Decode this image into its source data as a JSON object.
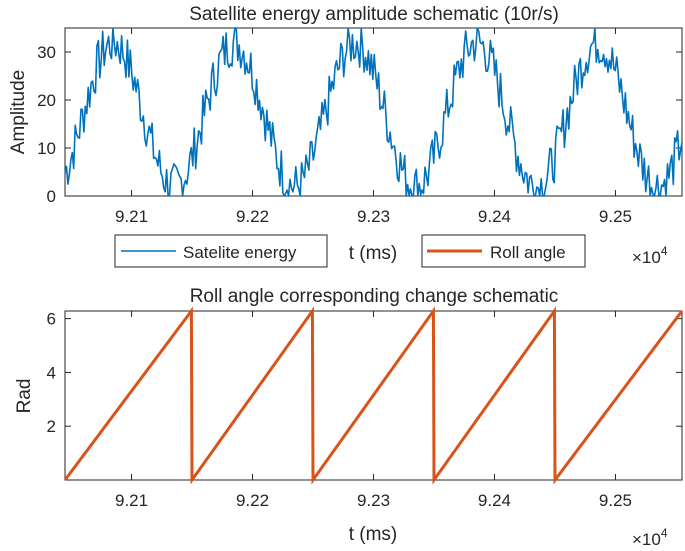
{
  "chart_data": [
    {
      "type": "line",
      "title": "Satellite energy amplitude schematic (10r/s)",
      "xlabel": "t (ms)",
      "ylabel": "Amplitude",
      "xlim": [
        92045,
        92555
      ],
      "ylim": [
        0,
        35
      ],
      "xticks": [
        92100,
        92200,
        92300,
        92400,
        92500
      ],
      "xtick_labels": [
        "9.21",
        "9.22",
        "9.23",
        "9.24",
        "9.25"
      ],
      "yticks": [
        0,
        10,
        20,
        30
      ],
      "ytick_labels": [
        "0",
        "10",
        "20",
        "30"
      ],
      "x_exponent_base": "×10",
      "x_exponent_power": "4",
      "series": [
        {
          "name": "Satelite energy",
          "color": "#0072bd",
          "description": "noisy periodic signal, period 100 ms, peaks near 92085, 92185, 92285, 92385, 92485, oscillating between roughly 2 and 32",
          "period": 100,
          "peaks_x": [
            92085,
            92185,
            92285,
            92385,
            92485
          ],
          "min": 2,
          "max": 32
        }
      ],
      "legend": {
        "position": "below",
        "entries": [
          {
            "label": "Satelite energy",
            "color": "#0072bd"
          },
          {
            "label": "Roll angle",
            "color": "#d95319"
          }
        ]
      }
    },
    {
      "type": "line",
      "title": "Roll angle corresponding change schematic",
      "xlabel": "t (ms)",
      "ylabel": "Rad",
      "xlim": [
        92045,
        92555
      ],
      "ylim": [
        0,
        6.283
      ],
      "xticks": [
        92100,
        92200,
        92300,
        92400,
        92500
      ],
      "xtick_labels": [
        "9.21",
        "9.22",
        "9.23",
        "9.24",
        "9.25"
      ],
      "yticks": [
        2,
        4,
        6
      ],
      "ytick_labels": [
        "2",
        "4",
        "6"
      ],
      "x_exponent_base": "×10",
      "x_exponent_power": "4",
      "series": [
        {
          "name": "Roll angle",
          "color": "#d95319",
          "x": [
            92045,
            92149.5,
            92150,
            92249.5,
            92250,
            92349.5,
            92350,
            92449.5,
            92450,
            92555
          ],
          "y": [
            0,
            6.283,
            0,
            6.283,
            0,
            6.283,
            0,
            6.283,
            0,
            6.283
          ]
        }
      ]
    }
  ]
}
